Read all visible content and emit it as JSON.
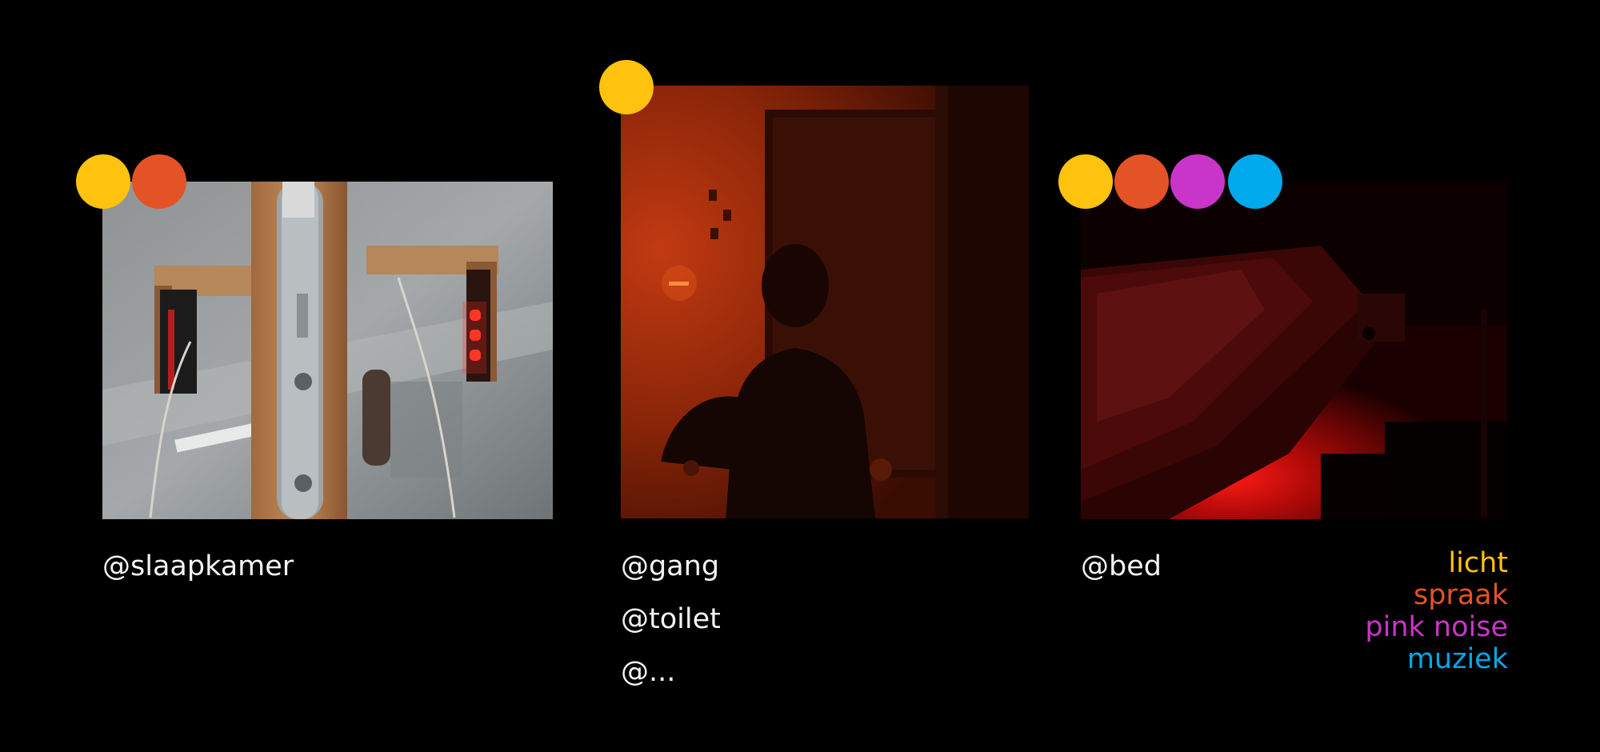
{
  "colors": {
    "licht": "#FFC20E",
    "spraak": "#E35326",
    "pink_noise": "#C935C9",
    "muziek": "#00A8EC"
  },
  "panels": [
    {
      "caption": "@slaapkamer",
      "indicators": [
        "licht",
        "spraak"
      ]
    },
    {
      "captions": [
        "@gang",
        "@toilet",
        "@..."
      ],
      "indicators": [
        "licht"
      ]
    },
    {
      "caption": "@bed",
      "indicators": [
        "licht",
        "spraak",
        "pink_noise",
        "muziek"
      ]
    }
  ],
  "legend": {
    "licht": "licht",
    "spraak": "spraak",
    "pink_noise": "pink noise",
    "muziek": "muziek"
  }
}
